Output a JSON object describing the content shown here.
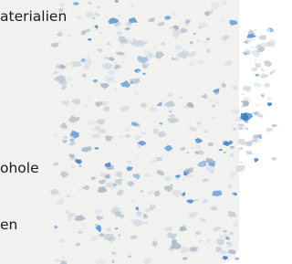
{
  "texts": {
    "line_1": "aterialien",
    "line_2": "ohole",
    "line_3": "en"
  }
}
